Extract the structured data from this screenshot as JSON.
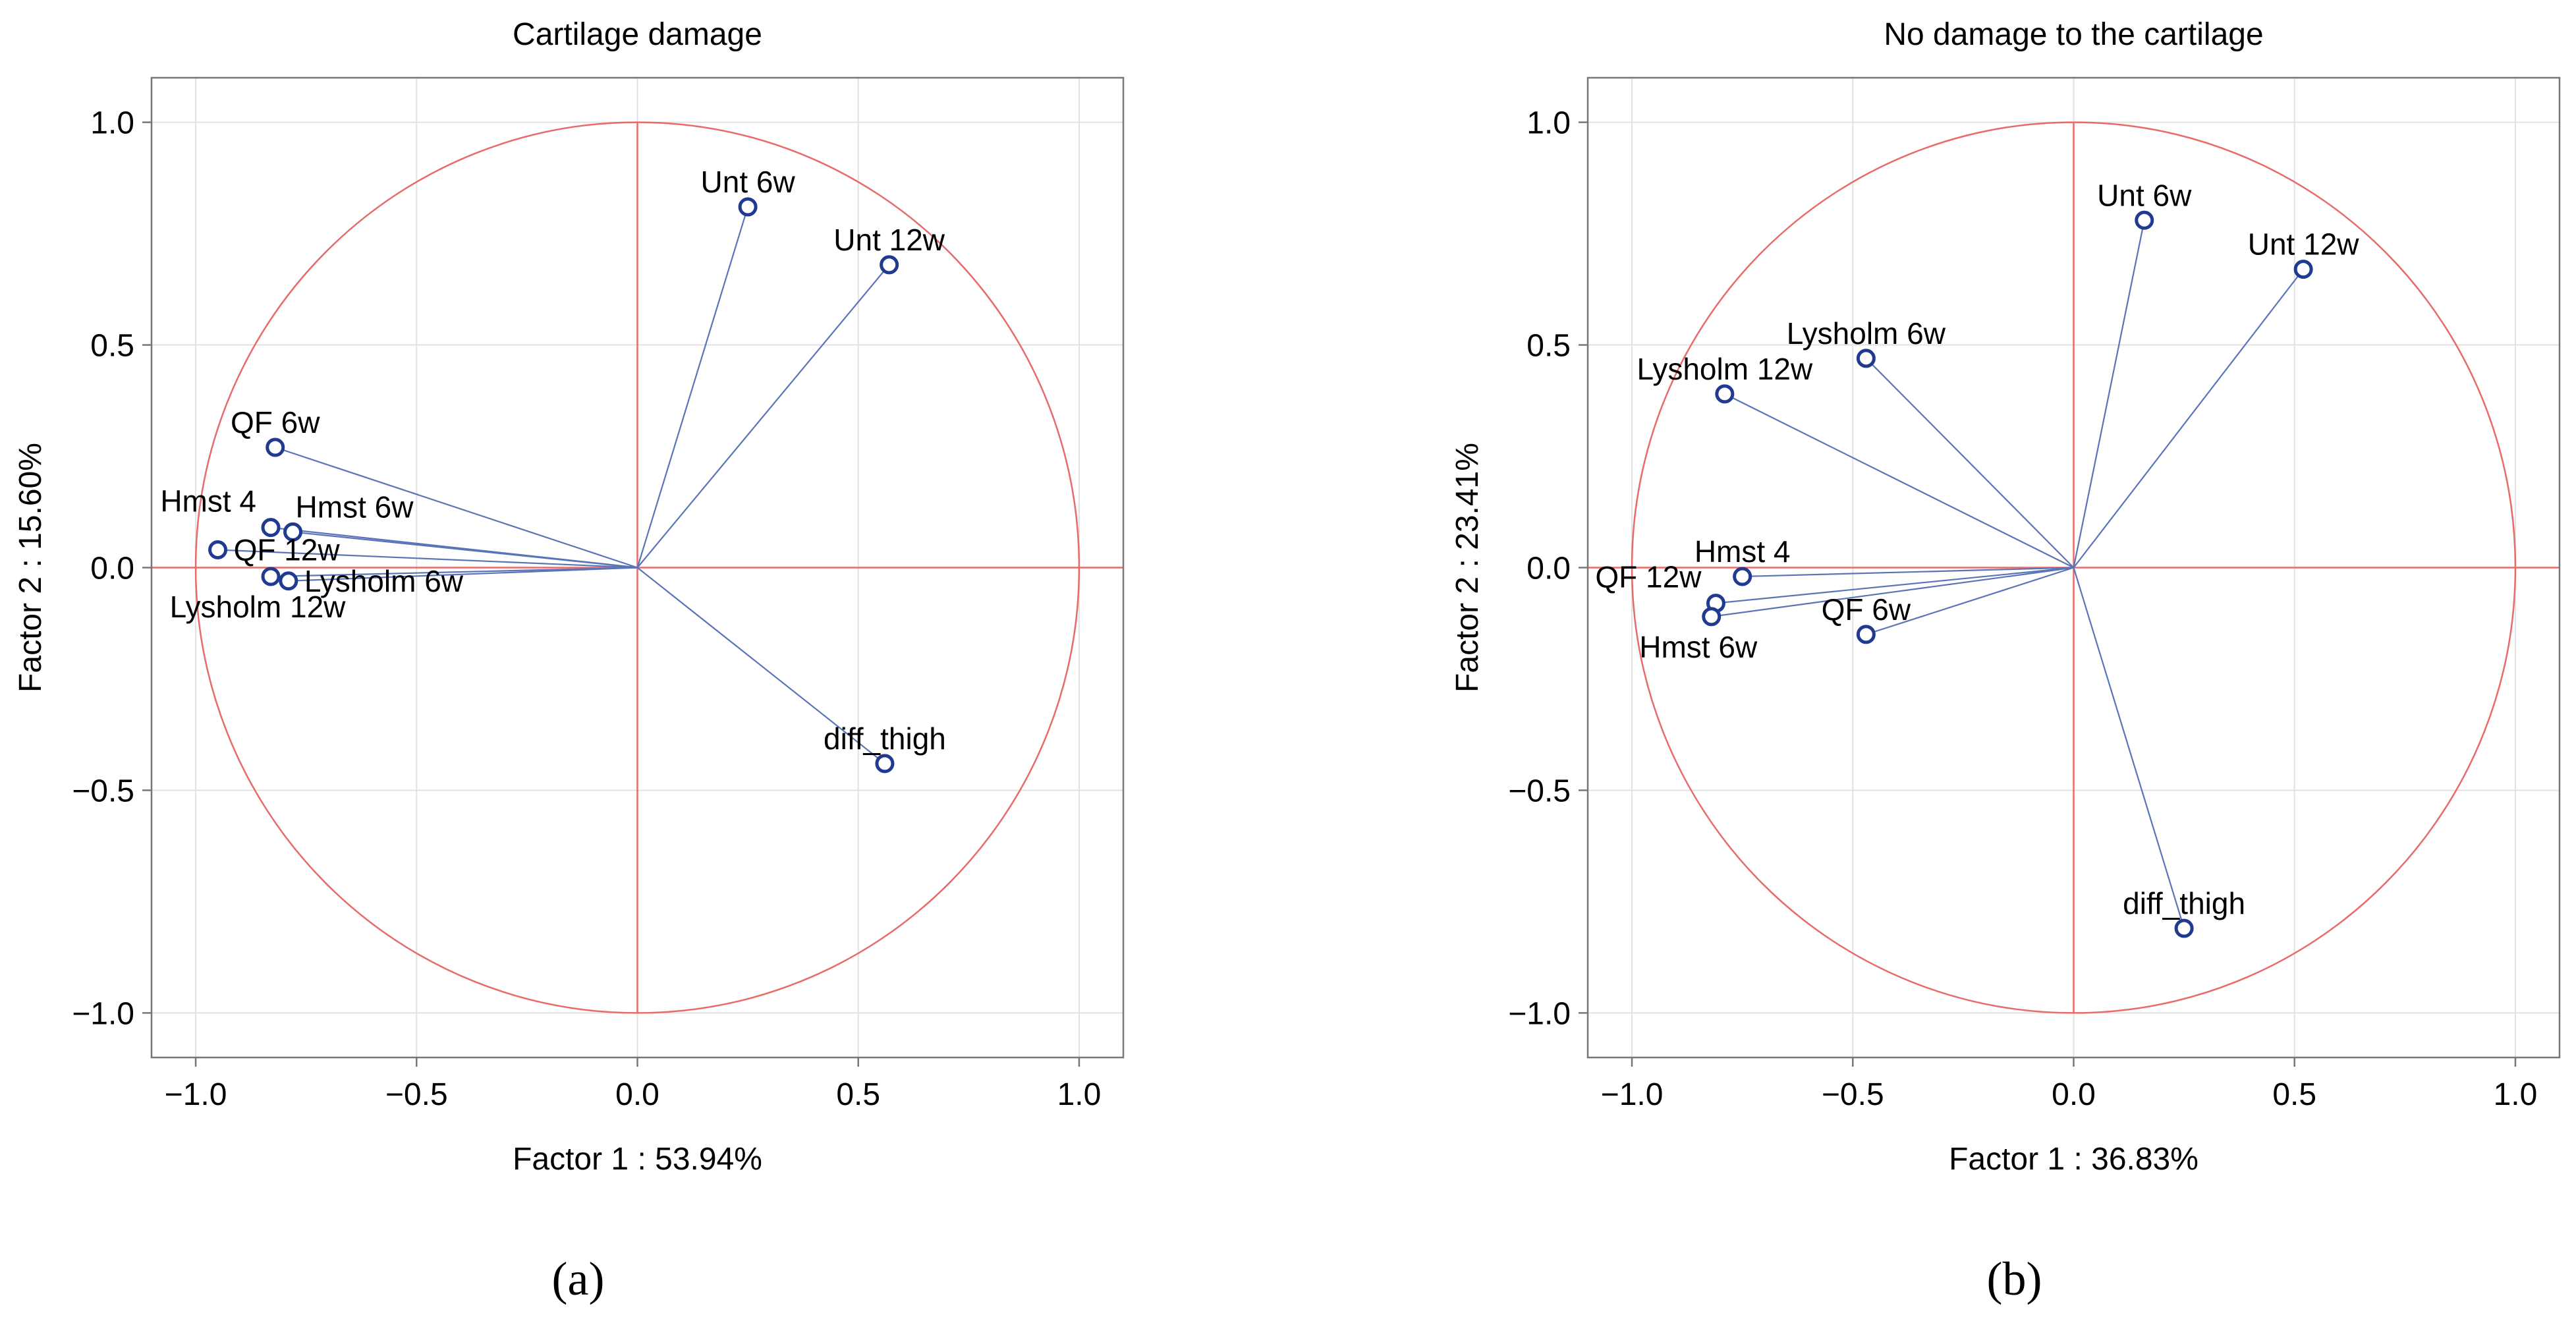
{
  "chart_data": [
    {
      "type": "scatter",
      "panel": "(a)",
      "title": "Cartilage damage",
      "xlabel": "Factor 1 : 53.94%",
      "ylabel": "Factor 2 : 15.60%",
      "xlim": [
        -1.1,
        1.1
      ],
      "ylim": [
        -1.1,
        1.1
      ],
      "xticks": [
        -1.0,
        -0.5,
        0.0,
        0.5,
        1.0
      ],
      "yticks": [
        -1.0,
        -0.5,
        0.0,
        0.5,
        1.0
      ],
      "xtick_labels": [
        "−1.0",
        "−0.5",
        "0.0",
        "0.5",
        "1.0"
      ],
      "ytick_labels": [
        "−1.0",
        "−0.5",
        "0.0",
        "0.5",
        "1.0"
      ],
      "unit_circle": true,
      "points": [
        {
          "label": "Unt 6w",
          "x": 0.25,
          "y": 0.81,
          "anchor": "above"
        },
        {
          "label": "Unt 12w",
          "x": 0.57,
          "y": 0.68,
          "anchor": "above"
        },
        {
          "label": "QF 6w",
          "x": -0.82,
          "y": 0.27,
          "anchor": "above"
        },
        {
          "label": "Hmst 4",
          "x": -0.83,
          "y": 0.09,
          "anchor": "above-left"
        },
        {
          "label": "Hmst 6w",
          "x": -0.78,
          "y": 0.08,
          "anchor": "above-right"
        },
        {
          "label": "QF 12w",
          "x": -0.95,
          "y": 0.04,
          "anchor": "right"
        },
        {
          "label": "Lysholm 6w",
          "x": -0.79,
          "y": -0.03,
          "anchor": "right"
        },
        {
          "label": "Lysholm 12w",
          "x": -0.83,
          "y": -0.02,
          "anchor": "below"
        },
        {
          "label": "diff_thigh",
          "x": 0.56,
          "y": -0.44,
          "anchor": "above"
        }
      ]
    },
    {
      "type": "scatter",
      "panel": "(b)",
      "title": "No damage to the cartilage",
      "xlabel": "Factor  1 : 36.83%",
      "ylabel": "Factor 2 : 23.41%",
      "xlim": [
        -1.1,
        1.1
      ],
      "ylim": [
        -1.1,
        1.1
      ],
      "xticks": [
        -1.0,
        -0.5,
        0.0,
        0.5,
        1.0
      ],
      "yticks": [
        -1.0,
        -0.5,
        0.0,
        0.5,
        1.0
      ],
      "xtick_labels": [
        "−1.0",
        "−0.5",
        "0.0",
        "0.5",
        "1.0"
      ],
      "ytick_labels": [
        "−1.0",
        "−0.5",
        "0.0",
        "0.5",
        "1.0"
      ],
      "unit_circle": true,
      "points": [
        {
          "label": "Unt 6w",
          "x": 0.16,
          "y": 0.78,
          "anchor": "above"
        },
        {
          "label": "Unt 12w",
          "x": 0.52,
          "y": 0.67,
          "anchor": "above"
        },
        {
          "label": "Lysholm 6w",
          "x": -0.47,
          "y": 0.47,
          "anchor": "above"
        },
        {
          "label": "Lysholm 12w",
          "x": -0.79,
          "y": 0.39,
          "anchor": "above"
        },
        {
          "label": "Hmst 4",
          "x": -0.75,
          "y": -0.02,
          "anchor": "above"
        },
        {
          "label": "QF 12w",
          "x": -0.81,
          "y": -0.08,
          "anchor": "above-left"
        },
        {
          "label": "Hmst 6w",
          "x": -0.82,
          "y": -0.11,
          "anchor": "below"
        },
        {
          "label": "QF 6w",
          "x": -0.47,
          "y": -0.15,
          "anchor": "above"
        },
        {
          "label": "diff_thigh",
          "x": 0.25,
          "y": -0.81,
          "anchor": "above"
        }
      ]
    }
  ]
}
